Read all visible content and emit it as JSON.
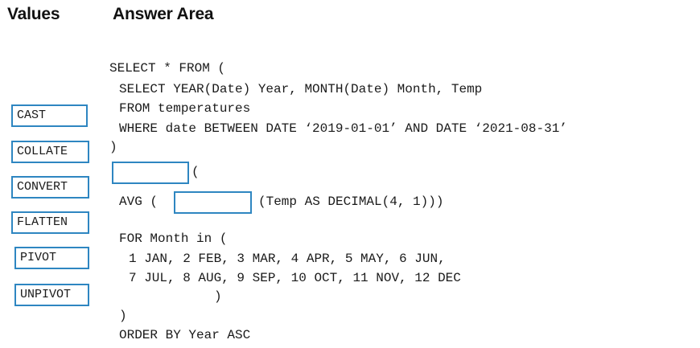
{
  "headings": {
    "values": "Values",
    "answer_area": "Answer Area"
  },
  "values": [
    "CAST",
    "COLLATE",
    "CONVERT",
    "FLATTEN",
    "PIVOT",
    "UNPIVOT"
  ],
  "code": {
    "line1": "SELECT * FROM (",
    "line2": "SELECT YEAR(Date) Year, MONTH(Date) Month, Temp",
    "line3": "FROM temperatures",
    "line4": "WHERE date BETWEEN DATE ‘2019-01-01’ AND DATE ‘2021-08-31’",
    "line5": ")",
    "line6_suffix": "(",
    "line7_prefix": "AVG (",
    "line7_suffix": "(Temp AS DECIMAL(4, 1)))",
    "line8": "FOR Month in (",
    "line9": "1 JAN, 2 FEB, 3 MAR, 4 APR, 5 MAY, 6 JUN,",
    "line10": "7 JUL, 8 AUG, 9 SEP, 10 OCT, 11 NOV, 12 DEC",
    "line11": ")",
    "line12": ")",
    "line13": "ORDER BY Year ASC"
  },
  "colors": {
    "box_border": "#2e86c1",
    "text": "#1a1a1a"
  }
}
